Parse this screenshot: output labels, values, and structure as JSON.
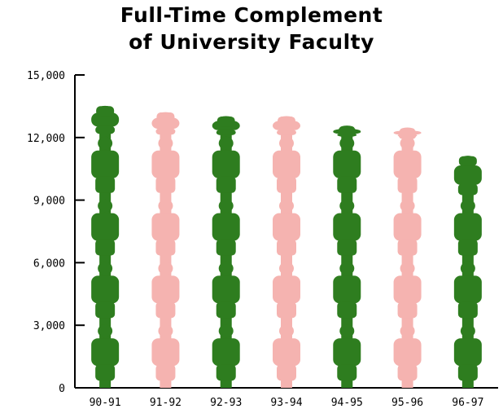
{
  "chart_data": {
    "type": "bar",
    "title_lines": [
      "Full-Time Complement",
      "of University Faculty"
    ],
    "categories": [
      "90-91",
      "91-92",
      "92-93",
      "93-94",
      "94-95",
      "95-96",
      "96-97"
    ],
    "values": [
      13500,
      13200,
      13000,
      13000,
      12500,
      12400,
      11100
    ],
    "bar_colors": [
      "#2e7d1f",
      "#f5b3b0",
      "#2e7d1f",
      "#f5b3b0",
      "#2e7d1f",
      "#f5b3b0",
      "#2e7d1f"
    ],
    "bar_style": "pictograph-stacked-people",
    "ylim": [
      0,
      15000
    ],
    "yticks": [
      0,
      3000,
      6000,
      9000,
      12000,
      15000
    ],
    "ytick_labels": [
      "0",
      "3,000",
      "6,000",
      "9,000",
      "12,000",
      "15,000"
    ],
    "grid": false,
    "legend": "none"
  }
}
